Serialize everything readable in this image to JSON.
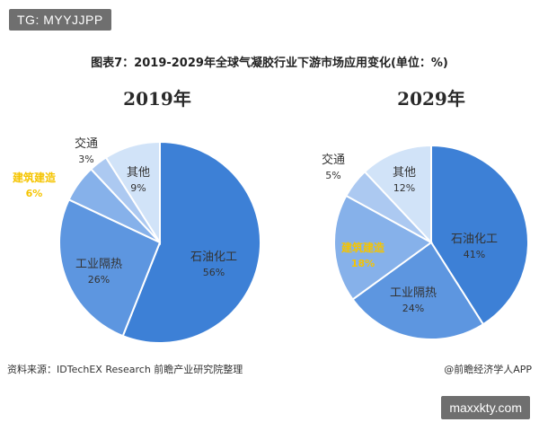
{
  "badge_top": "TG: MYYJJPP",
  "badge_bottom": "maxxkty.com",
  "source_text": "资料来源：IDTechEX Research 前瞻产业研究院整理",
  "credit_text": "@前瞻经济学人APP",
  "colors": {
    "slice_dark": "#3d80d6",
    "slice_mid": "#5d96e0",
    "slice_light": "#86b1ea",
    "slice_pale": "#acc9f1",
    "slice_palest": "#d1e3f8",
    "highlight_label": "#f5c400"
  },
  "chart_data": {
    "type": "pie",
    "title": "图表7：2019-2029年全球气凝胶行业下游市场应用变化(单位：%)",
    "unit": "%",
    "charts": [
      {
        "year": "2019年",
        "slices": [
          {
            "label": "石油化工",
            "value": 56,
            "value_text": "56%"
          },
          {
            "label": "工业隔热",
            "value": 26,
            "value_text": "26%"
          },
          {
            "label": "建筑建造",
            "value": 6,
            "value_text": "6%"
          },
          {
            "label": "交通",
            "value": 3,
            "value_text": "3%"
          },
          {
            "label": "其他",
            "value": 9,
            "value_text": "9%"
          }
        ]
      },
      {
        "year": "2029年",
        "slices": [
          {
            "label": "石油化工",
            "value": 41,
            "value_text": "41%"
          },
          {
            "label": "工业隔热",
            "value": 24,
            "value_text": "24%"
          },
          {
            "label": "建筑建造",
            "value": 18,
            "value_text": "18%"
          },
          {
            "label": "交通",
            "value": 5,
            "value_text": "5%"
          },
          {
            "label": "其他",
            "value": 12,
            "value_text": "12%"
          }
        ]
      }
    ]
  }
}
